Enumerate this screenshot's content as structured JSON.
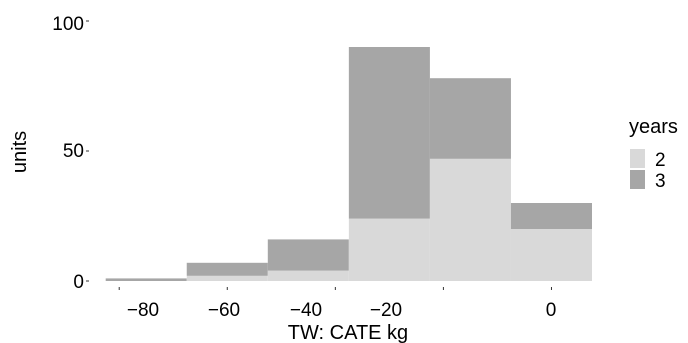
{
  "chart_data": {
    "type": "histogram",
    "xlabel": "TW: CATE kg",
    "ylabel": "units",
    "x_ticks": [
      "−80",
      "−60",
      "−40",
      "−20",
      "0"
    ],
    "x_tick_values": [
      -80,
      -60,
      -40,
      -20,
      0
    ],
    "y_ticks": [
      "0",
      "50",
      "100"
    ],
    "y_tick_values": [
      0,
      50,
      100
    ],
    "xlim": [
      -83,
      7.5
    ],
    "ylim": [
      0,
      100
    ],
    "stacked": true,
    "bins": [
      {
        "x0": -82.5,
        "x1": -67.5
      },
      {
        "x0": -67.5,
        "x1": -52.5
      },
      {
        "x0": -52.5,
        "x1": -37.5
      },
      {
        "x0": -37.5,
        "x1": -22.5
      },
      {
        "x0": -22.5,
        "x1": -7.5
      },
      {
        "x0": -7.5,
        "x1": 7.5
      }
    ],
    "series": [
      {
        "name": "2",
        "color": "#d9d9d9",
        "values": [
          0,
          2,
          4,
          24,
          47,
          20
        ]
      },
      {
        "name": "3",
        "color": "#a6a6a6",
        "values": [
          1,
          5,
          12,
          66,
          31,
          10
        ]
      }
    ],
    "legend": {
      "title": "years",
      "position": "right"
    },
    "grid": false
  }
}
